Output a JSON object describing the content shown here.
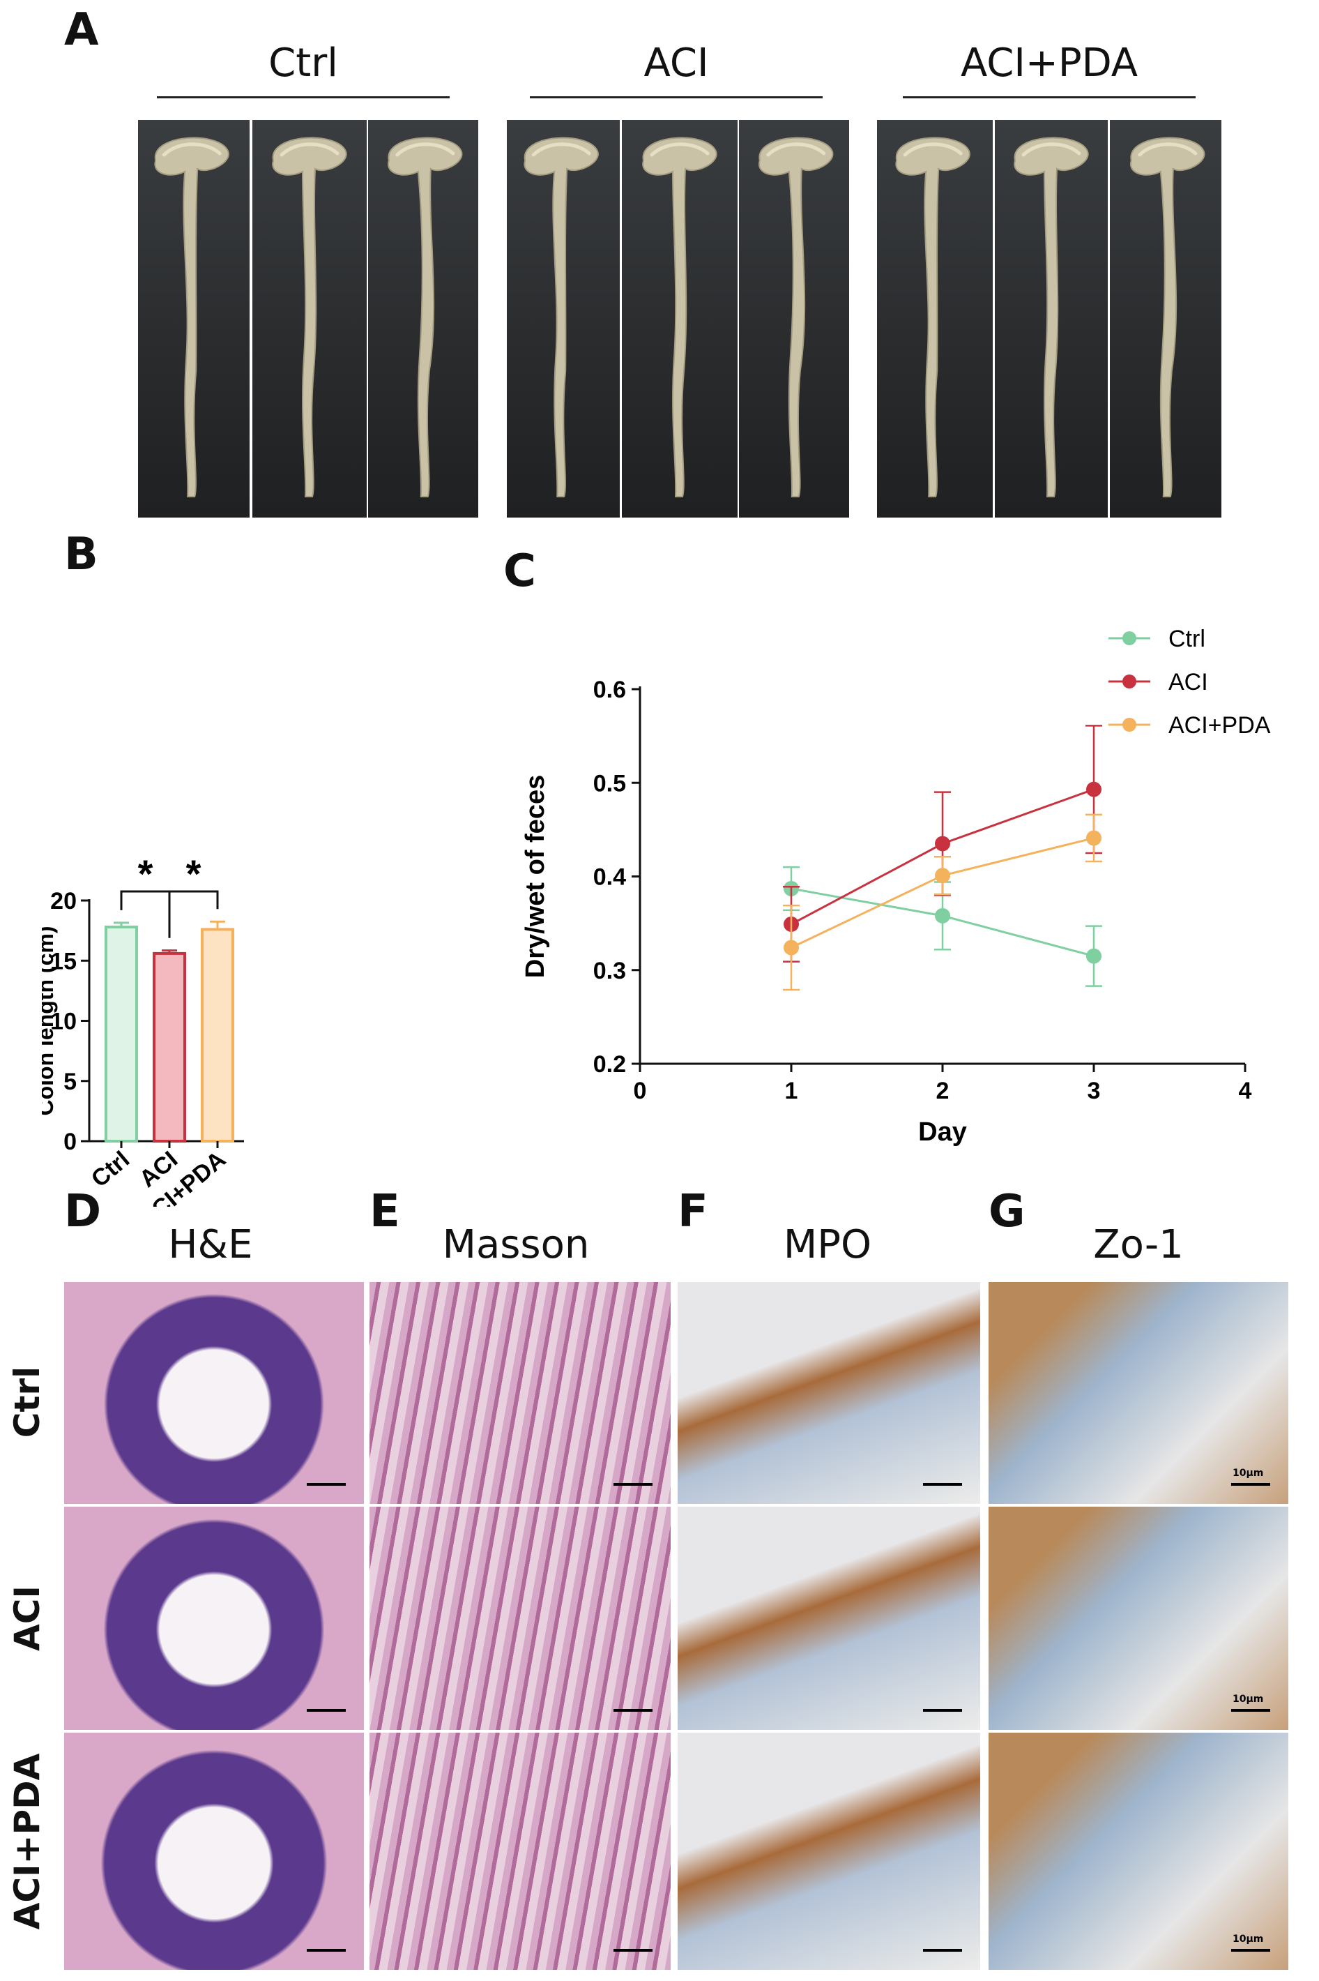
{
  "panels": {
    "A": "A",
    "B": "B",
    "C": "C",
    "D": "D",
    "E": "E",
    "F": "F",
    "G": "G"
  },
  "groups": [
    "Ctrl",
    "ACI",
    "ACI+PDA"
  ],
  "histology": {
    "titles": [
      "H&E",
      "Masson",
      "MPO",
      "Zo-1"
    ],
    "rows": [
      "Ctrl",
      "ACI",
      "ACI+PDA"
    ],
    "scale_text": "10μm"
  },
  "colors": {
    "ctrl": "#7fcfa0",
    "aci": "#c8323f",
    "aci_pda": "#f5b25d",
    "ctrl_fill": "#dff3e6",
    "aci_fill": "#f4b9be",
    "aci_pda_fill": "#fde3c2"
  },
  "chart_data": [
    {
      "type": "bar",
      "categories": [
        "Ctrl",
        "ACI",
        "ACI+PDA"
      ],
      "values": [
        17.8,
        15.6,
        17.6
      ],
      "errors": [
        0.35,
        0.25,
        0.65
      ],
      "ylabel": "Colon length (cm)",
      "xlabel": "",
      "ylim": [
        0,
        20
      ],
      "yticks": [
        0,
        5,
        10,
        15,
        20
      ],
      "significance": [
        {
          "pair": [
            "Ctrl",
            "ACI"
          ],
          "label": "*"
        },
        {
          "pair": [
            "ACI",
            "ACI+PDA"
          ],
          "label": "*"
        }
      ]
    },
    {
      "type": "line",
      "x": [
        1,
        2,
        3
      ],
      "xlabel": "Day",
      "ylabel": "Dry/wet of feces",
      "xlim": [
        0,
        4
      ],
      "xticks": [
        0,
        1,
        2,
        3,
        4
      ],
      "ylim": [
        0.2,
        0.6
      ],
      "yticks": [
        "0.2",
        "0.3",
        "0.4",
        "0.5",
        "0.6"
      ],
      "legend": "top-right",
      "series": [
        {
          "name": "Ctrl",
          "values": [
            0.387,
            0.358,
            0.315
          ],
          "errors": [
            0.023,
            0.036,
            0.032
          ]
        },
        {
          "name": "ACI",
          "values": [
            0.349,
            0.435,
            0.493
          ],
          "errors": [
            0.04,
            0.055,
            0.068
          ]
        },
        {
          "name": "ACI+PDA",
          "values": [
            0.324,
            0.401,
            0.441
          ],
          "errors": [
            0.045,
            0.02,
            0.025
          ]
        }
      ]
    }
  ]
}
